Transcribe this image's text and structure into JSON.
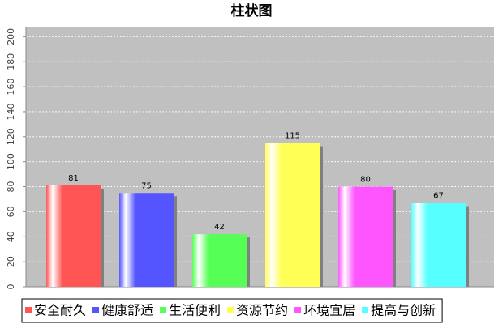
{
  "chart_data": {
    "type": "bar",
    "title": "柱状图",
    "categories": [
      null
    ],
    "series": [
      {
        "name": "安全耐久",
        "color": "#ff5555",
        "values": [
          81
        ]
      },
      {
        "name": "健康舒适",
        "color": "#5555ff",
        "values": [
          75
        ]
      },
      {
        "name": "生活便利",
        "color": "#55ff55",
        "values": [
          42
        ]
      },
      {
        "name": "资源节约",
        "color": "#ffff55",
        "values": [
          115
        ]
      },
      {
        "name": "环境宜居",
        "color": "#ff55ff",
        "values": [
          80
        ]
      },
      {
        "name": "提高与创新",
        "color": "#55ffff",
        "values": [
          67
        ]
      }
    ],
    "ylim": [
      0,
      208
    ],
    "yticks": [
      0,
      20,
      40,
      60,
      80,
      100,
      120,
      140,
      160,
      180,
      200
    ],
    "grid": true,
    "legend": "bottom"
  }
}
